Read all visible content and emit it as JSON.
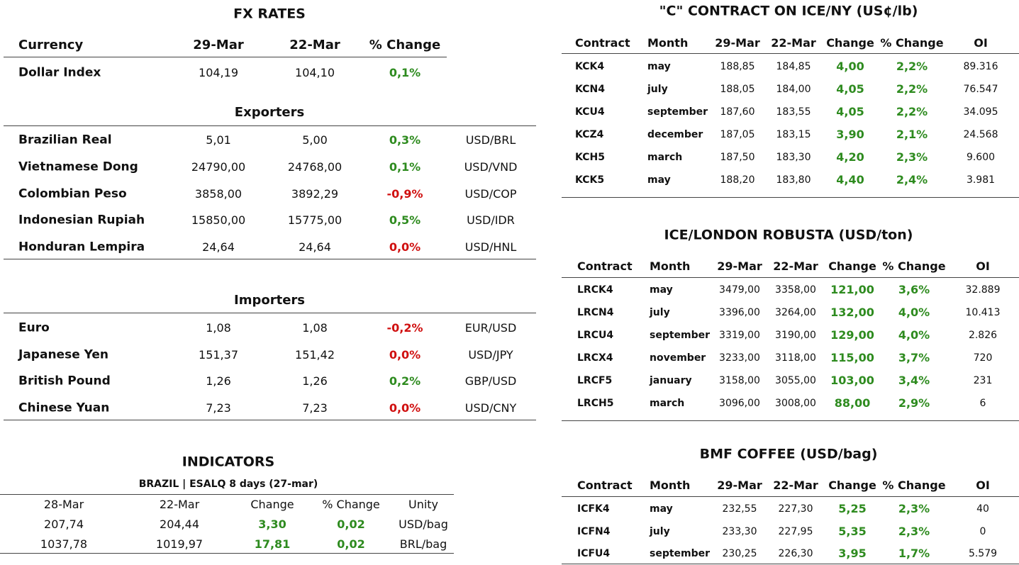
{
  "fx": {
    "title": "FX RATES",
    "header": [
      "Currency",
      "29-Mar",
      "22-Mar",
      "% Change"
    ],
    "dollar": [
      "Dollar Index",
      "104,19",
      "104,10",
      "0,1%"
    ],
    "exporters": {
      "title": "Exporters",
      "rows": [
        [
          "Brazilian Real",
          "5,01",
          "5,00",
          "0,3%",
          "USD/BRL"
        ],
        [
          "Vietnamese Dong",
          "24790,00",
          "24768,00",
          "0,1%",
          "USD/VND"
        ],
        [
          "Colombian Peso",
          "3858,00",
          "3892,29",
          "-0,9%",
          "USD/COP"
        ],
        [
          "Indonesian Rupiah",
          "15850,00",
          "15775,00",
          "0,5%",
          "USD/IDR"
        ],
        [
          "Honduran Lempira",
          "24,64",
          "24,64",
          "0,0%",
          "USD/HNL"
        ]
      ]
    },
    "importers": {
      "title": "Importers",
      "rows": [
        [
          "Euro",
          "1,08",
          "1,08",
          "-0,2%",
          "EUR/USD"
        ],
        [
          "Japanese Yen",
          "151,37",
          "151,42",
          "0,0%",
          "USD/JPY"
        ],
        [
          "British Pound",
          "1,26",
          "1,26",
          "0,2%",
          "GBP/USD"
        ],
        [
          "Chinese Yuan",
          "7,23",
          "7,23",
          "0,0%",
          "USD/CNY"
        ]
      ]
    }
  },
  "indicators": {
    "title": "INDICATORS",
    "subtitle": "BRAZIL | ESALQ 8 days (27-mar)",
    "header": [
      "28-Mar",
      "22-Mar",
      "Change",
      "% Change",
      "Unity"
    ],
    "rows": [
      [
        "207,74",
        "204,44",
        "3,30",
        "0,02",
        "USD/bag"
      ],
      [
        "1037,78",
        "1019,97",
        "17,81",
        "0,02",
        "BRL/bag"
      ]
    ]
  },
  "ice_ny": {
    "title": "\"C\" CONTRACT ON ICE/NY (US¢/lb)",
    "header": [
      "Contract",
      "Month",
      "29-Mar",
      "22-Mar",
      "Change",
      "% Change",
      "OI"
    ],
    "rows": [
      [
        "KCK4",
        "may",
        "188,85",
        "184,85",
        "4,00",
        "2,2%",
        "89.316"
      ],
      [
        "KCN4",
        "july",
        "188,05",
        "184,00",
        "4,05",
        "2,2%",
        "76.547"
      ],
      [
        "KCU4",
        "september",
        "187,60",
        "183,55",
        "4,05",
        "2,2%",
        "34.095"
      ],
      [
        "KCZ4",
        "december",
        "187,05",
        "183,15",
        "3,90",
        "2,1%",
        "24.568"
      ],
      [
        "KCH5",
        "march",
        "187,50",
        "183,30",
        "4,20",
        "2,3%",
        "9.600"
      ],
      [
        "KCK5",
        "may",
        "188,20",
        "183,80",
        "4,40",
        "2,4%",
        "3.981"
      ]
    ]
  },
  "ice_london": {
    "title": "ICE/LONDON ROBUSTA (USD/ton)",
    "header": [
      "Contract",
      "Month",
      "29-Mar",
      "22-Mar",
      "Change",
      "% Change",
      "OI"
    ],
    "rows": [
      [
        "LRCK4",
        "may",
        "3479,00",
        "3358,00",
        "121,00",
        "3,6%",
        "32.889"
      ],
      [
        "LRCN4",
        "july",
        "3396,00",
        "3264,00",
        "132,00",
        "4,0%",
        "10.413"
      ],
      [
        "LRCU4",
        "september",
        "3319,00",
        "3190,00",
        "129,00",
        "4,0%",
        "2.826"
      ],
      [
        "LRCX4",
        "november",
        "3233,00",
        "3118,00",
        "115,00",
        "3,7%",
        "720"
      ],
      [
        "LRCF5",
        "january",
        "3158,00",
        "3055,00",
        "103,00",
        "3,4%",
        "231"
      ],
      [
        "LRCH5",
        "march",
        "3096,00",
        "3008,00",
        "88,00",
        "2,9%",
        "6"
      ]
    ]
  },
  "bmf": {
    "title": "BMF COFFEE (USD/bag)",
    "header": [
      "Contract",
      "Month",
      "29-Mar",
      "22-Mar",
      "Change",
      "% Change",
      "OI"
    ],
    "rows": [
      [
        "ICFK4",
        "may",
        "232,55",
        "227,30",
        "5,25",
        "2,3%",
        "40"
      ],
      [
        "ICFN4",
        "july",
        "233,30",
        "227,95",
        "5,35",
        "2,3%",
        "0"
      ],
      [
        "ICFU4",
        "september",
        "230,25",
        "226,30",
        "3,95",
        "1,7%",
        "5.579"
      ]
    ]
  }
}
